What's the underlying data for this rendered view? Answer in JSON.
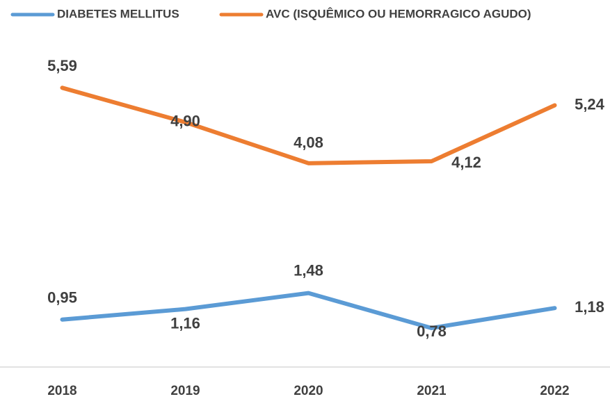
{
  "chart_data": {
    "type": "line",
    "categories": [
      "2018",
      "2019",
      "2020",
      "2021",
      "2022"
    ],
    "series": [
      {
        "name": "DIABETES MELLITUS",
        "color": "#5b9bd5",
        "values": [
          0.95,
          1.16,
          1.48,
          0.78,
          1.18
        ],
        "value_labels": [
          "0,95",
          "1,16",
          "1,48",
          "0,78",
          "1,18"
        ]
      },
      {
        "name": "AVC (ISQUÊMICO OU HEMORRAGICO AGUDO)",
        "color": "#ed7d31",
        "values": [
          5.59,
          4.9,
          4.08,
          4.12,
          5.24
        ],
        "value_labels": [
          "5,59",
          "4,90",
          "4,08",
          "4,12",
          "5,24"
        ]
      }
    ],
    "ylim": [
      0,
      7
    ],
    "legend": "top"
  }
}
